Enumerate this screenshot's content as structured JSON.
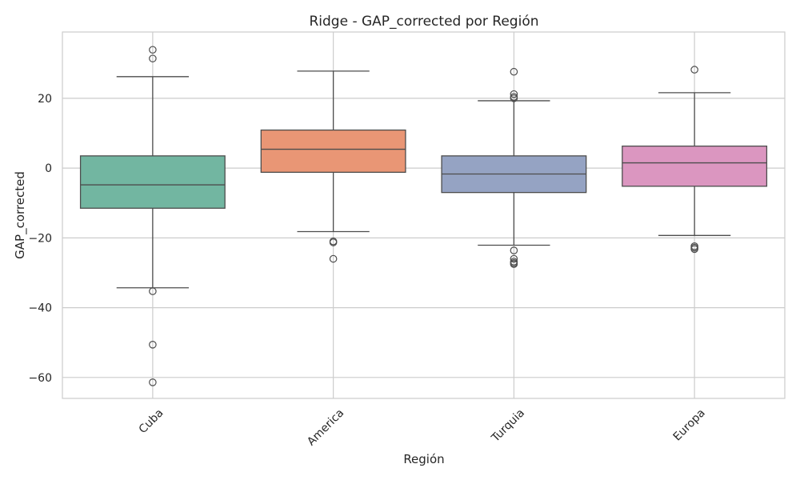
{
  "chart_data": {
    "type": "box",
    "title": "Ridge - GAP_corrected por Región",
    "xlabel": "Región",
    "ylabel": "GAP_corrected",
    "ylim": [
      -66,
      39
    ],
    "yticks": [
      20,
      0,
      -20,
      -40,
      -60
    ],
    "grid": true,
    "categories": [
      "Cuba",
      "America",
      "Turquia",
      "Europa"
    ],
    "colors": [
      "#72b6a1",
      "#e99675",
      "#95a3c3",
      "#db96c0"
    ],
    "boxes": [
      {
        "category": "Cuba",
        "whisker_low": -34.3,
        "q1": -11.5,
        "median": -4.8,
        "q3": 3.5,
        "whisker_high": 26.2,
        "outliers": [
          33.9,
          31.4,
          -35.3,
          -50.6,
          -61.4
        ]
      },
      {
        "category": "America",
        "whisker_low": -18.2,
        "q1": -1.2,
        "median": 5.4,
        "q3": 10.9,
        "whisker_high": 27.8,
        "outliers": [
          -21.0,
          -21.3,
          -26.0
        ]
      },
      {
        "category": "Turquia",
        "whisker_low": -22.1,
        "q1": -7.0,
        "median": -1.7,
        "q3": 3.5,
        "whisker_high": 19.3,
        "outliers": [
          27.6,
          21.2,
          20.4,
          20.0,
          -23.6,
          -26.0,
          -26.8,
          -27.2,
          -27.5
        ]
      },
      {
        "category": "Europa",
        "whisker_low": -19.3,
        "q1": -5.2,
        "median": 1.5,
        "q3": 6.3,
        "whisker_high": 21.6,
        "outliers": [
          28.2,
          -22.4,
          -22.8,
          -23.2
        ]
      }
    ]
  }
}
